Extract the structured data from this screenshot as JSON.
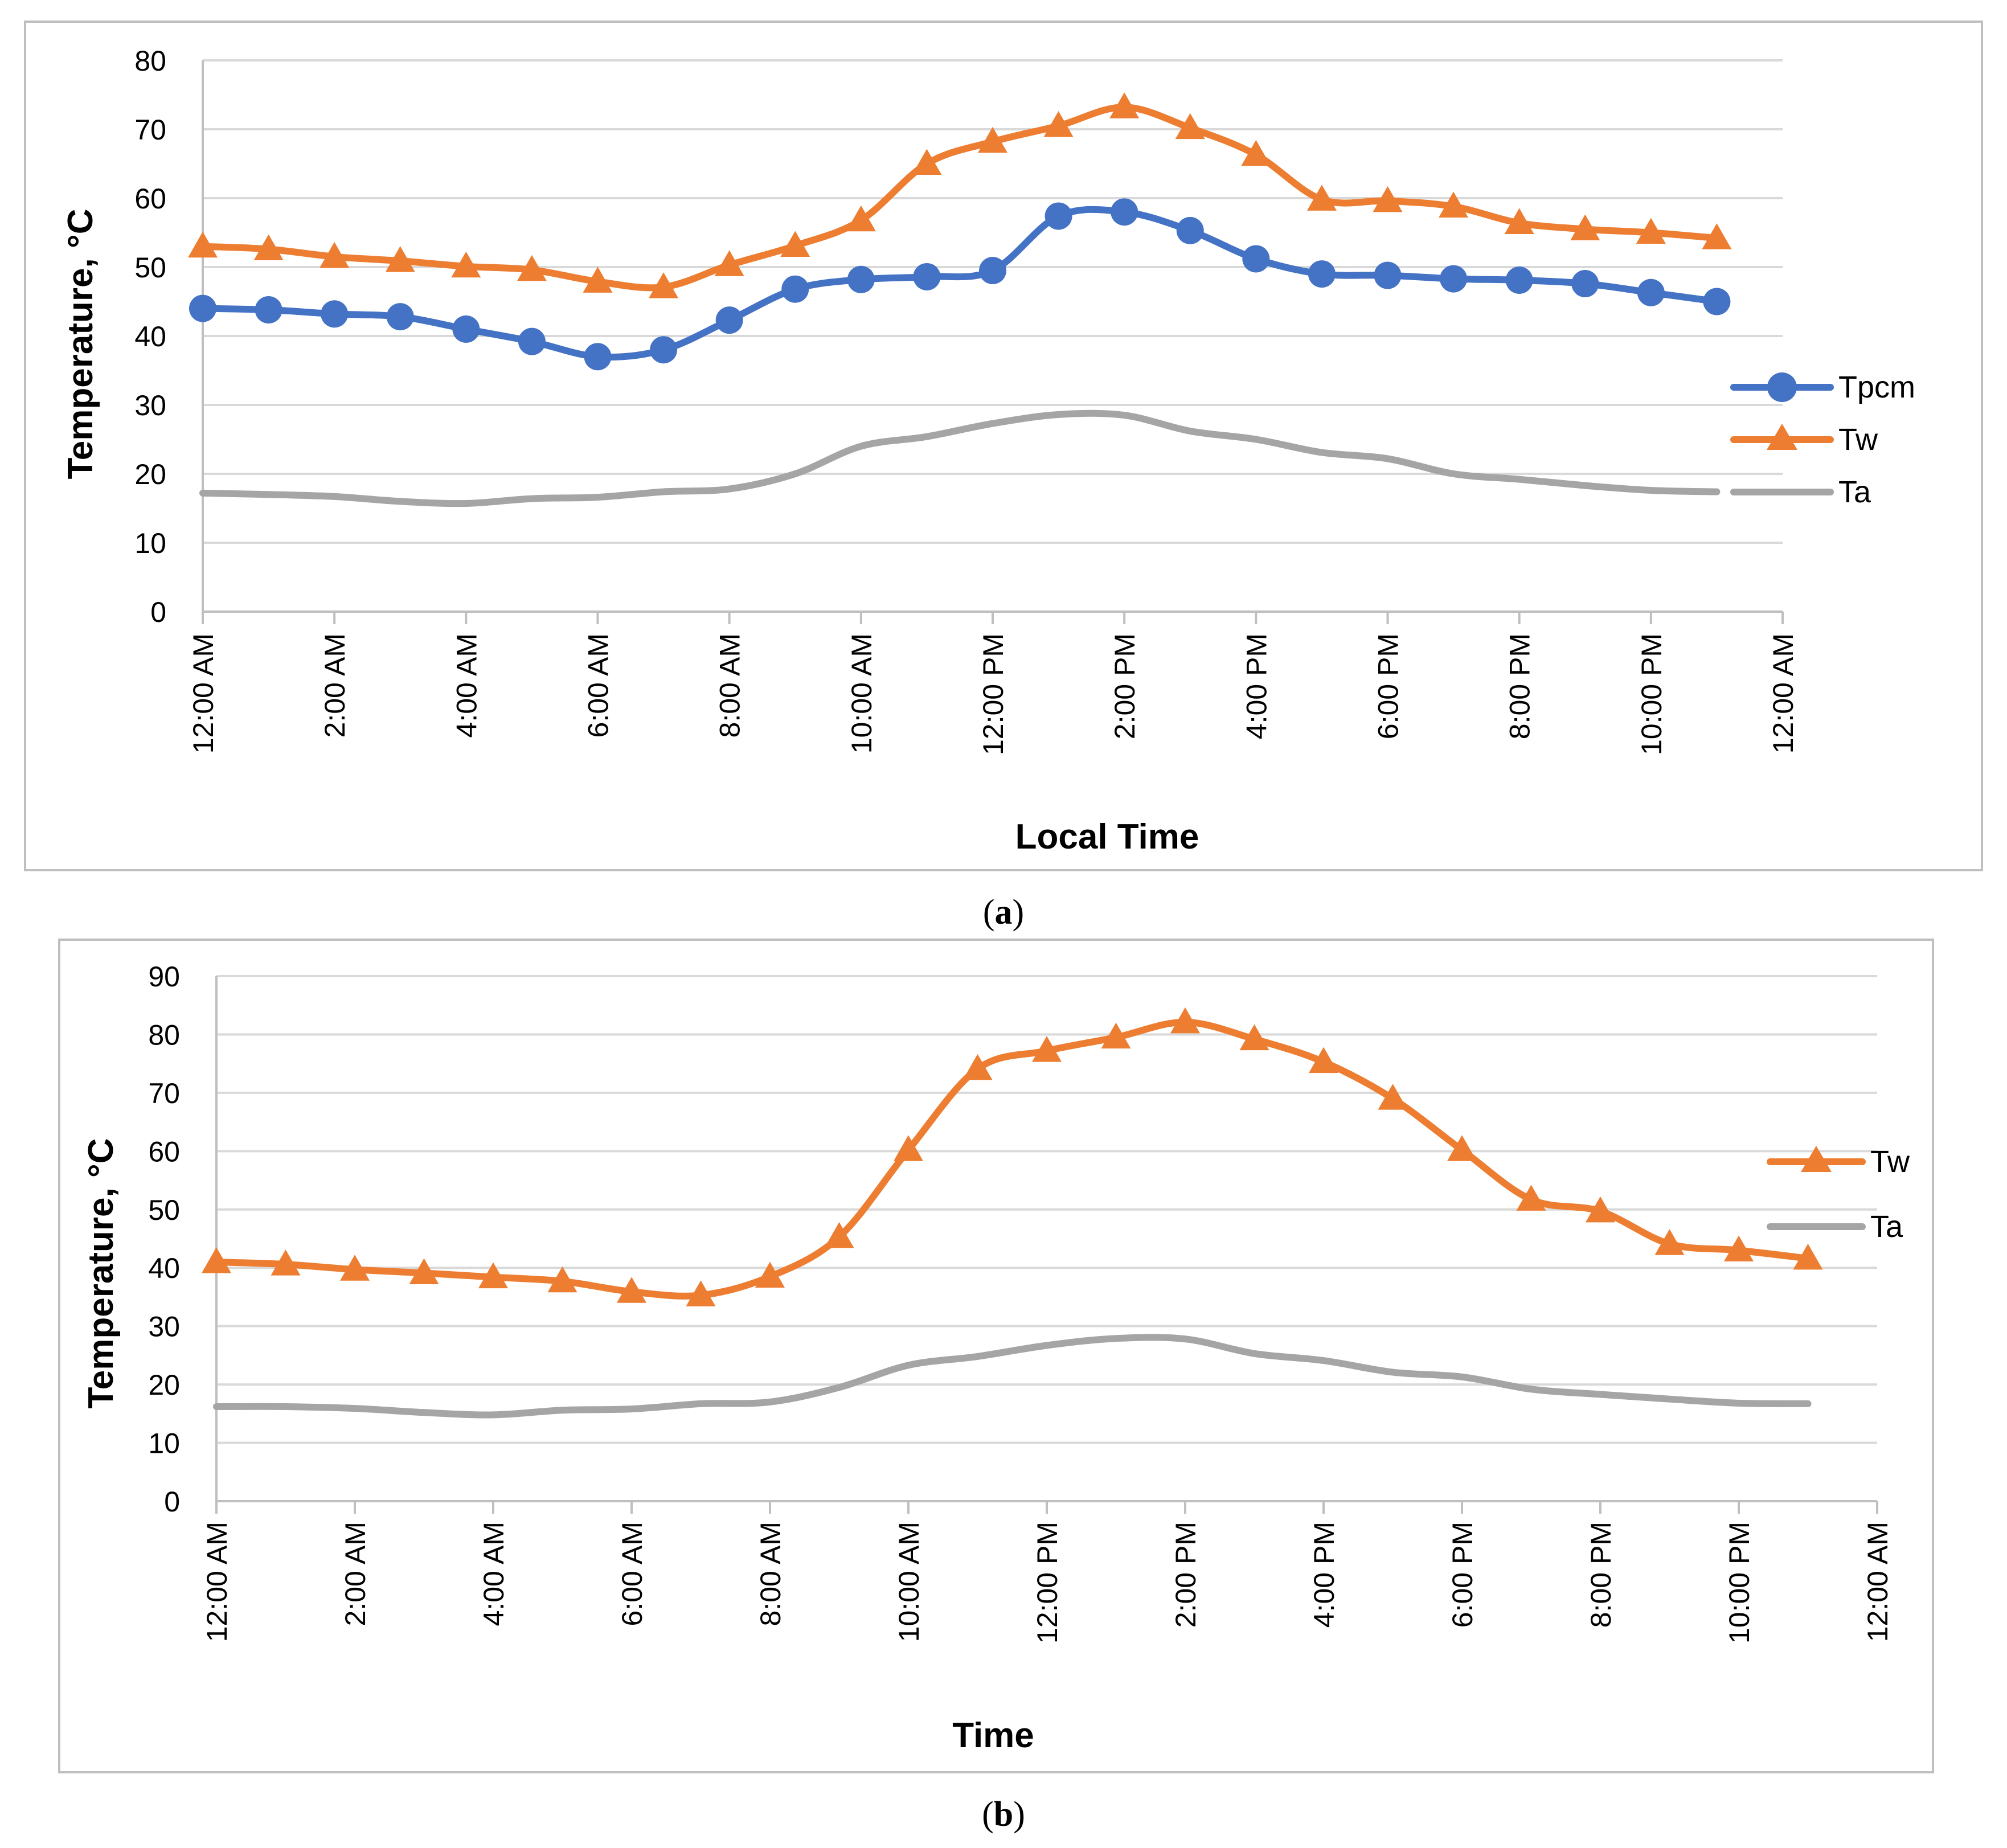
{
  "chart_data": [
    {
      "id": "a",
      "type": "line",
      "caption_letter": "a",
      "caption_open": "(",
      "caption_close": ")",
      "title": "",
      "xlabel": "Local Time",
      "ylabel": "Temperature, °C",
      "ylim": [
        0,
        80
      ],
      "yticks": [
        0,
        10,
        20,
        30,
        40,
        50,
        60,
        70,
        80
      ],
      "xlim_hours": [
        0,
        24
      ],
      "xticks": [
        {
          "hour": 0,
          "label": "12:00 AM"
        },
        {
          "hour": 2,
          "label": "2:00 AM"
        },
        {
          "hour": 4,
          "label": "4:00 AM"
        },
        {
          "hour": 6,
          "label": "6:00 AM"
        },
        {
          "hour": 8,
          "label": "8:00 AM"
        },
        {
          "hour": 10,
          "label": "10:00 AM"
        },
        {
          "hour": 12,
          "label": "12:00 PM"
        },
        {
          "hour": 14,
          "label": "2:00 PM"
        },
        {
          "hour": 16,
          "label": "4:00 PM"
        },
        {
          "hour": 18,
          "label": "6:00 PM"
        },
        {
          "hour": 20,
          "label": "8:00 PM"
        },
        {
          "hour": 22,
          "label": "10:00 PM"
        },
        {
          "hour": 24,
          "label": "12:00 AM"
        }
      ],
      "x_hours": [
        0,
        1,
        2,
        3,
        4,
        5,
        6,
        7,
        8,
        9,
        10,
        11,
        12,
        13,
        14,
        15,
        16,
        17,
        18,
        19,
        20,
        21,
        22,
        23
      ],
      "legend_position": "right",
      "series": [
        {
          "name": "Tpcm",
          "color": "#4472C4",
          "marker": "circle",
          "values": [
            44,
            43.8,
            43.2,
            42.8,
            41,
            39.2,
            37,
            38,
            42.3,
            46.8,
            48.2,
            48.6,
            49.5,
            57.4,
            58,
            55.3,
            51.2,
            49,
            48.8,
            48.3,
            48.1,
            47.6,
            46.3,
            45
          ]
        },
        {
          "name": "Tw",
          "color": "#ED7D31",
          "marker": "triangle",
          "values": [
            53,
            52.6,
            51.5,
            50.9,
            50.1,
            49.6,
            47.9,
            47.1,
            50.3,
            53.1,
            56.8,
            65,
            68.2,
            70.5,
            73.2,
            70.2,
            66.3,
            59.8,
            59.6,
            58.8,
            56.4,
            55.5,
            55,
            54.2
          ]
        },
        {
          "name": "Ta",
          "color": "#A5A5A5",
          "marker": "none",
          "values": [
            17.2,
            17,
            16.7,
            16,
            15.7,
            16.4,
            16.6,
            17.4,
            17.8,
            20,
            24,
            25.4,
            27.3,
            28.6,
            28.5,
            26.2,
            25,
            23.1,
            22.2,
            20,
            19.2,
            18.3,
            17.6,
            17.4
          ]
        }
      ]
    },
    {
      "id": "b",
      "type": "line",
      "caption_letter": "b",
      "caption_open": "(",
      "caption_close": ")",
      "title": "",
      "xlabel": "Time",
      "ylabel": "Temperature, °C",
      "ylim": [
        0,
        90
      ],
      "yticks": [
        0,
        10,
        20,
        30,
        40,
        50,
        60,
        70,
        80,
        90
      ],
      "xlim_hours": [
        0,
        24
      ],
      "xticks": [
        {
          "hour": 0,
          "label": "12:00 AM"
        },
        {
          "hour": 2,
          "label": "2:00 AM"
        },
        {
          "hour": 4,
          "label": "4:00 AM"
        },
        {
          "hour": 6,
          "label": "6:00 AM"
        },
        {
          "hour": 8,
          "label": "8:00 AM"
        },
        {
          "hour": 10,
          "label": "10:00 AM"
        },
        {
          "hour": 12,
          "label": "12:00 PM"
        },
        {
          "hour": 14,
          "label": "2:00 PM"
        },
        {
          "hour": 16,
          "label": "4:00 PM"
        },
        {
          "hour": 18,
          "label": "6:00 PM"
        },
        {
          "hour": 20,
          "label": "8:00 PM"
        },
        {
          "hour": 22,
          "label": "10:00 PM"
        },
        {
          "hour": 24,
          "label": "12:00 AM"
        }
      ],
      "x_hours": [
        0,
        1,
        2,
        3,
        4,
        5,
        6,
        7,
        8,
        9,
        10,
        11,
        12,
        13,
        14,
        15,
        16,
        17,
        18,
        19,
        20,
        21,
        22,
        23
      ],
      "legend_position": "right",
      "series": [
        {
          "name": "Tw",
          "color": "#ED7D31",
          "marker": "triangle",
          "values": [
            41,
            40.6,
            39.7,
            39.1,
            38.4,
            37.7,
            35.9,
            35.3,
            38.5,
            45.3,
            60.2,
            74.1,
            77.2,
            79.5,
            82.1,
            79.2,
            75.3,
            69,
            60.2,
            51.7,
            49.7,
            44.1,
            43,
            41.6
          ]
        },
        {
          "name": "Ta",
          "color": "#A5A5A5",
          "marker": "none",
          "values": [
            16.2,
            16.2,
            15.9,
            15.2,
            14.8,
            15.6,
            15.8,
            16.7,
            17,
            19.5,
            23.3,
            24.8,
            26.7,
            27.9,
            27.8,
            25.3,
            24.1,
            22.1,
            21.3,
            19.2,
            18.3,
            17.5,
            16.8,
            16.7
          ]
        }
      ]
    }
  ]
}
